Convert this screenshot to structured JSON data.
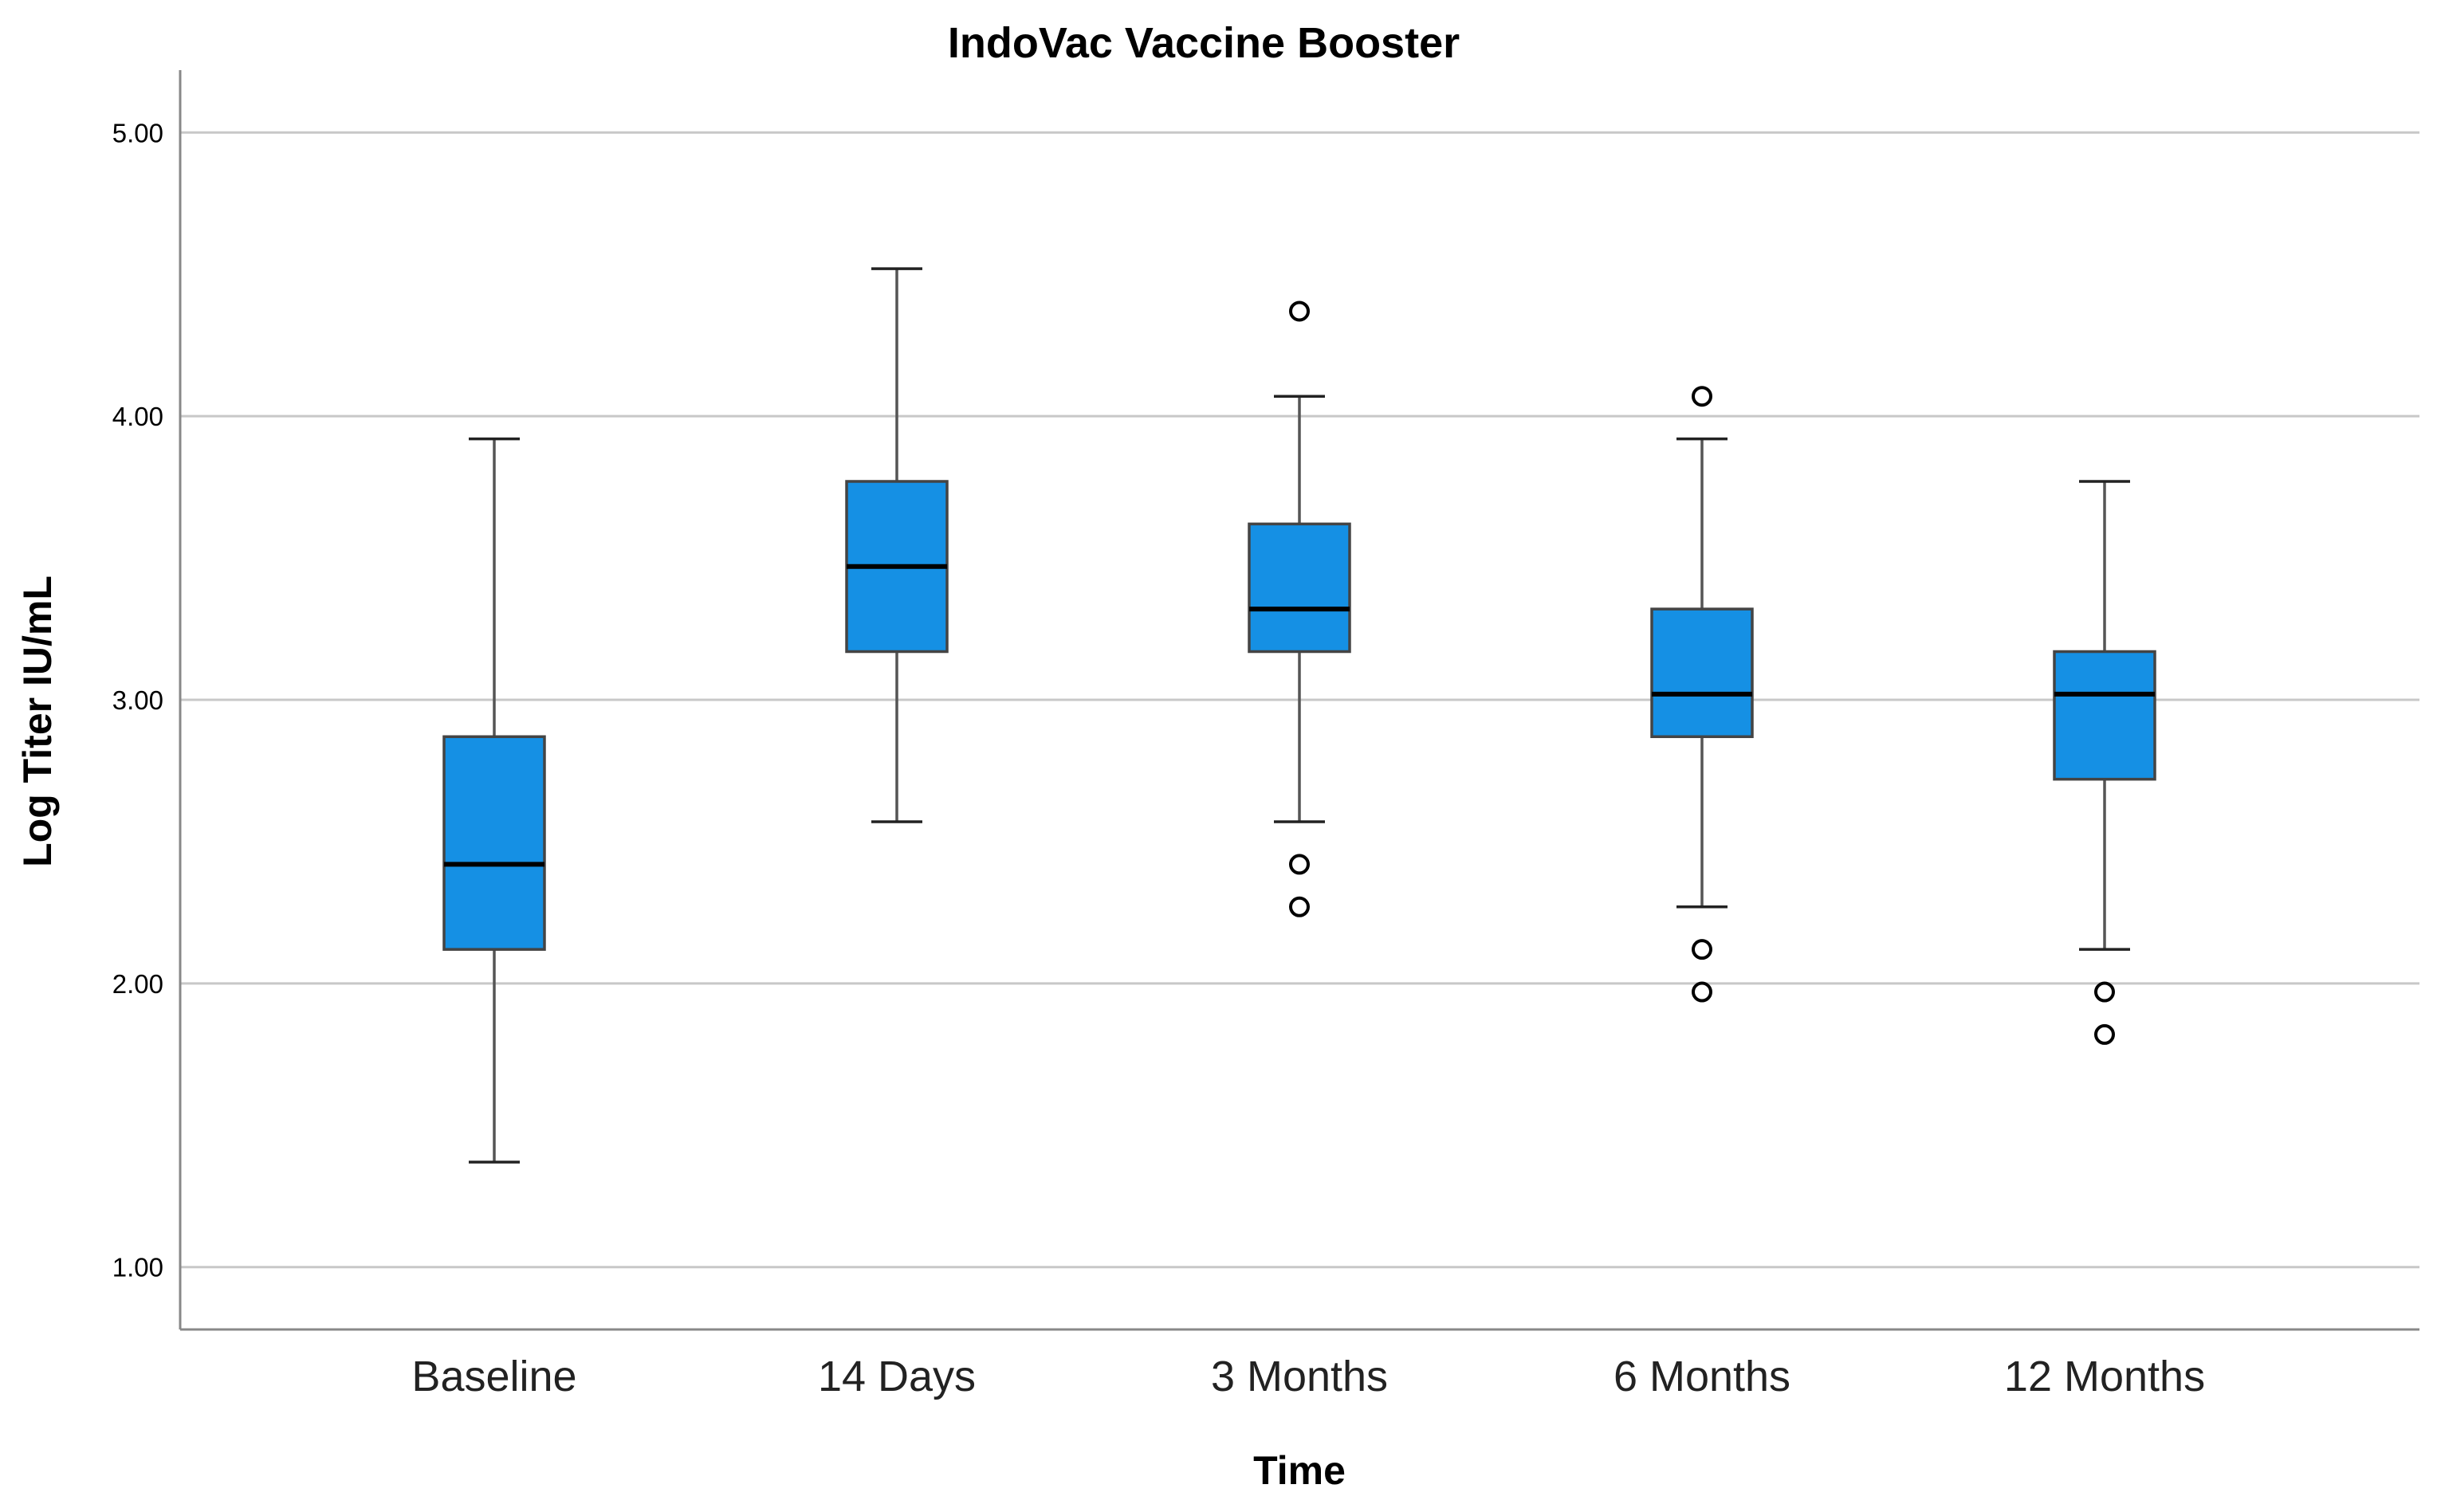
{
  "chart_data": {
    "type": "boxplot",
    "title": "IndoVac Vaccine Booster",
    "xlabel": "Time",
    "ylabel": "Log Titer IU/mL",
    "ylim": [
      0.78,
      5.22
    ],
    "yticks": [
      1.0,
      2.0,
      3.0,
      4.0,
      5.0
    ],
    "ytick_labels": [
      "1.00",
      "2.00",
      "3.00",
      "4.00",
      "5.00"
    ],
    "grid": true,
    "categories": [
      "Baseline",
      "14 Days",
      "3 Months",
      "6 Months",
      "12 Months"
    ],
    "boxes": [
      {
        "category": "Baseline",
        "whisker_low": 1.37,
        "q1": 2.12,
        "median": 2.42,
        "q3": 2.87,
        "whisker_high": 3.92,
        "outliers": []
      },
      {
        "category": "14 Days",
        "whisker_low": 2.57,
        "q1": 3.17,
        "median": 3.47,
        "q3": 3.77,
        "whisker_high": 4.52,
        "outliers": []
      },
      {
        "category": "3 Months",
        "whisker_low": 2.57,
        "q1": 3.17,
        "median": 3.32,
        "q3": 3.62,
        "whisker_high": 4.07,
        "outliers": [
          4.37,
          2.42,
          2.27
        ]
      },
      {
        "category": "6 Months",
        "whisker_low": 2.27,
        "q1": 2.87,
        "median": 3.02,
        "q3": 3.32,
        "whisker_high": 3.92,
        "outliers": [
          4.07,
          2.12,
          1.97
        ]
      },
      {
        "category": "12 Months",
        "whisker_low": 2.12,
        "q1": 2.72,
        "median": 3.02,
        "q3": 3.17,
        "whisker_high": 3.77,
        "outliers": [
          1.97,
          1.82
        ]
      }
    ],
    "colors": {
      "box_fill": "#1590e4",
      "box_stroke": "#444444",
      "median": "#000000",
      "whisker": "#555555",
      "grid": "#c8c8c8",
      "axis": "#888888",
      "outlier": "#000000"
    }
  }
}
